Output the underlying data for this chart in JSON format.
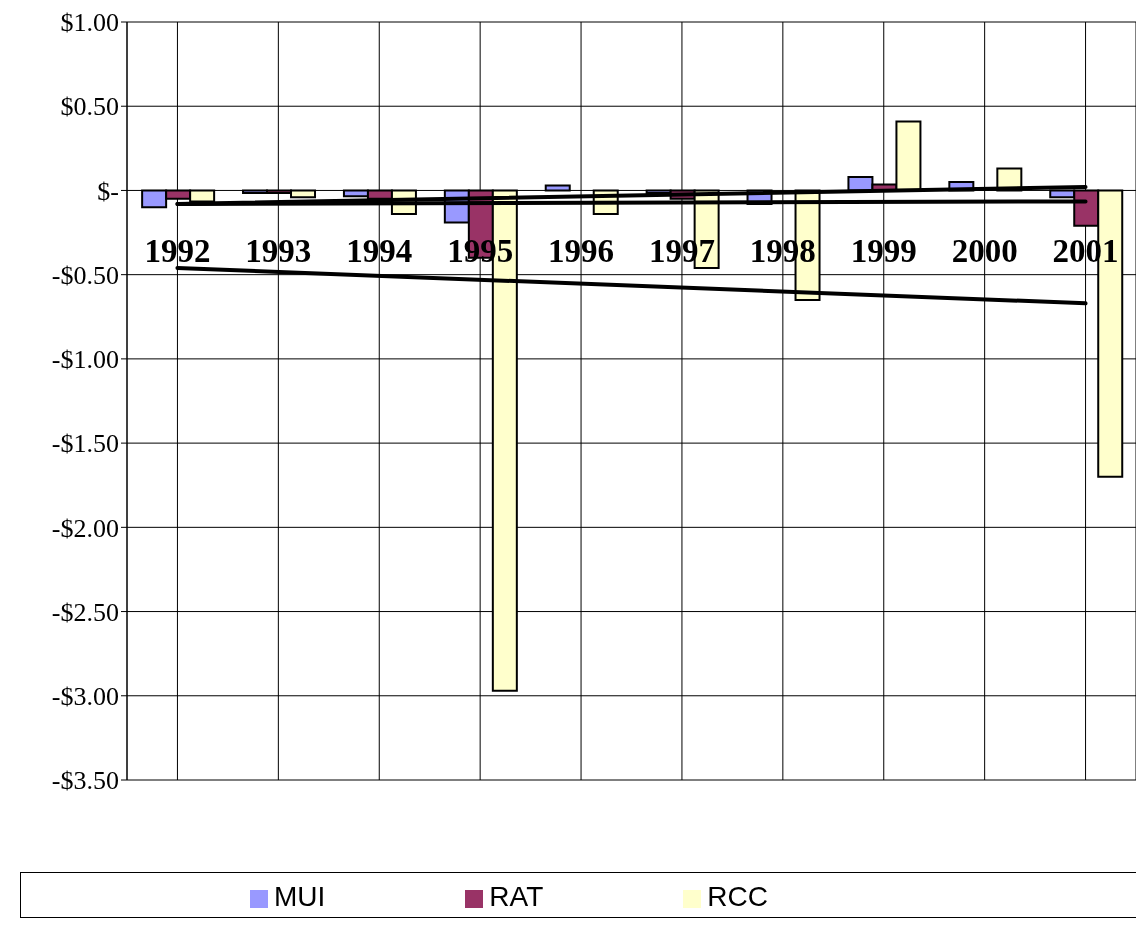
{
  "chart_data": {
    "type": "bar",
    "categories": [
      "1992",
      "1993",
      "1994",
      "1995",
      "1996",
      "1997",
      "1998",
      "1999",
      "2000",
      "2001"
    ],
    "series": [
      {
        "name": "MUI",
        "color": "#9999ff",
        "values": [
          -0.1,
          -0.015,
          -0.035,
          -0.19,
          0.03,
          -0.015,
          -0.08,
          0.08,
          0.05,
          -0.04
        ]
      },
      {
        "name": "RAT",
        "color": "#993366",
        "values": [
          -0.05,
          -0.015,
          -0.05,
          -0.4,
          0,
          -0.05,
          null,
          0.035,
          null,
          -0.21
        ]
      },
      {
        "name": "RCC",
        "color": "#ffffcc",
        "values": [
          -0.065,
          -0.04,
          -0.14,
          -2.97,
          -0.14,
          -0.46,
          -0.65,
          0.41,
          0.13,
          -1.7
        ]
      },
      {
        "type": "line",
        "color": "#000000",
        "values": [
          -0.08,
          null,
          null,
          null,
          null,
          null,
          null,
          null,
          null,
          0.02
        ]
      },
      {
        "type": "line",
        "color": "#000000",
        "values": [
          -0.08,
          null,
          null,
          null,
          null,
          null,
          null,
          null,
          null,
          -0.065
        ]
      },
      {
        "type": "line",
        "color": "#000000",
        "values": [
          -0.46,
          null,
          null,
          null,
          null,
          null,
          null,
          null,
          null,
          -0.67
        ]
      }
    ],
    "ylim": [
      -3.5,
      1
    ],
    "yticks": [
      {
        "value": 1,
        "label": "$1.00"
      },
      {
        "value": 0.5,
        "label": "$0.50"
      },
      {
        "value": 0,
        "label": "$-"
      },
      {
        "value": -0.5,
        "label": "-$0.50"
      },
      {
        "value": -1,
        "label": "-$1.00"
      },
      {
        "value": -1.5,
        "label": "-$1.50"
      },
      {
        "value": -2,
        "label": "-$2.00"
      },
      {
        "value": -2.5,
        "label": "-$2.50"
      },
      {
        "value": -3,
        "label": "-$3.00"
      },
      {
        "value": -3.5,
        "label": "-$3.50"
      }
    ],
    "grid": true,
    "legend": "bottom"
  }
}
